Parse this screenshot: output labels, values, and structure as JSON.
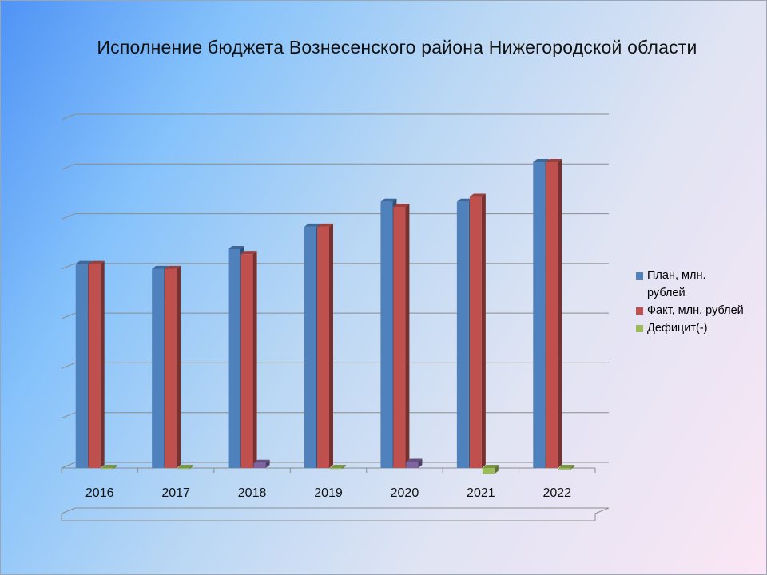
{
  "chart_data": {
    "type": "bar",
    "title": "Исполнение бюджета Вознесенского района Нижегородской области",
    "xlabel": "",
    "ylabel": "",
    "categories": [
      "2016",
      "2017",
      "2018",
      "2019",
      "2020",
      "2021",
      "2022"
    ],
    "series": [
      {
        "name": "План, млн. рублей",
        "color": "#4f81bd",
        "values": [
          410,
          400,
          440,
          485,
          535,
          535,
          615
        ]
      },
      {
        "name": "Факт, млн. рублей",
        "color": "#c0504d",
        "values": [
          410,
          400,
          430,
          485,
          525,
          545,
          615
        ]
      },
      {
        "name": "Дефицит(-)",
        "color": "#9bbb59",
        "values": [
          -2,
          -2,
          10,
          -2,
          12,
          -12,
          -3
        ]
      }
    ],
    "ylim": [
      0,
      700
    ],
    "grid": true,
    "legend": "right",
    "tick_labels_y_visible": false
  }
}
